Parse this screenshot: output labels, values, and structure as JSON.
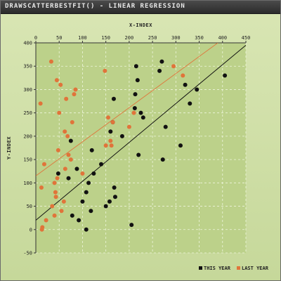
{
  "window": {
    "title": "DRAWSCATTERBESTFIT() - LINEAR REGRESSION"
  },
  "chart_data": {
    "type": "scatter",
    "title": "DRAWSCATTERBESTFIT() - LINEAR REGRESSION",
    "xlabel": "X-INDEX",
    "ylabel": "Y-INDEX",
    "xlim": [
      0,
      450
    ],
    "ylim": [
      -50,
      400
    ],
    "x_ticks": [
      0,
      50,
      100,
      150,
      200,
      250,
      300,
      350,
      400,
      450
    ],
    "y_ticks": [
      -50,
      0,
      50,
      100,
      150,
      200,
      250,
      300,
      350,
      400
    ],
    "x_axis_position": "top",
    "grid": true,
    "legend_position": "bottom-right",
    "series": [
      {
        "name": "THIS YEAR",
        "color": "#111111",
        "points": [
          [
            48,
            120
          ],
          [
            70,
            110
          ],
          [
            75,
            190
          ],
          [
            78,
            30
          ],
          [
            88,
            130
          ],
          [
            92,
            20
          ],
          [
            100,
            60
          ],
          [
            108,
            0
          ],
          [
            108,
            80
          ],
          [
            113,
            100
          ],
          [
            118,
            40
          ],
          [
            120,
            170
          ],
          [
            124,
            120
          ],
          [
            140,
            140
          ],
          [
            150,
            50
          ],
          [
            158,
            60
          ],
          [
            160,
            210
          ],
          [
            165,
            230
          ],
          [
            167,
            280
          ],
          [
            168,
            90
          ],
          [
            170,
            70
          ],
          [
            185,
            200
          ],
          [
            205,
            10
          ],
          [
            212,
            260
          ],
          [
            213,
            290
          ],
          [
            215,
            350
          ],
          [
            218,
            320
          ],
          [
            220,
            160
          ],
          [
            225,
            250
          ],
          [
            230,
            240
          ],
          [
            265,
            340
          ],
          [
            270,
            360
          ],
          [
            272,
            150
          ],
          [
            278,
            220
          ],
          [
            310,
            180
          ],
          [
            320,
            310
          ],
          [
            330,
            270
          ],
          [
            345,
            300
          ],
          [
            405,
            330
          ]
        ],
        "fit": {
          "x1": 0,
          "y1": 20,
          "x2": 450,
          "y2": 395
        }
      },
      {
        "name": "LAST YEAR",
        "color": "#e0743a",
        "points": [
          [
            10,
            270
          ],
          [
            12,
            90
          ],
          [
            13,
            0
          ],
          [
            14,
            5
          ],
          [
            18,
            140
          ],
          [
            22,
            20
          ],
          [
            33,
            360
          ],
          [
            35,
            50
          ],
          [
            40,
            30
          ],
          [
            40,
            100
          ],
          [
            42,
            80
          ],
          [
            43,
            70
          ],
          [
            45,
            320
          ],
          [
            46,
            110
          ],
          [
            48,
            170
          ],
          [
            50,
            250
          ],
          [
            53,
            310
          ],
          [
            55,
            40
          ],
          [
            60,
            60
          ],
          [
            62,
            210
          ],
          [
            63,
            130
          ],
          [
            65,
            280
          ],
          [
            68,
            200
          ],
          [
            70,
            160
          ],
          [
            75,
            150
          ],
          [
            78,
            230
          ],
          [
            82,
            290
          ],
          [
            85,
            300
          ],
          [
            100,
            120
          ],
          [
            148,
            340
          ],
          [
            150,
            180
          ],
          [
            155,
            240
          ],
          [
            160,
            190
          ],
          [
            162,
            180
          ],
          [
            165,
            230
          ],
          [
            200,
            220
          ],
          [
            210,
            250
          ],
          [
            295,
            350
          ],
          [
            315,
            330
          ]
        ],
        "fit": {
          "x1": 0,
          "y1": 115,
          "x2": 390,
          "y2": 400
        }
      }
    ]
  }
}
